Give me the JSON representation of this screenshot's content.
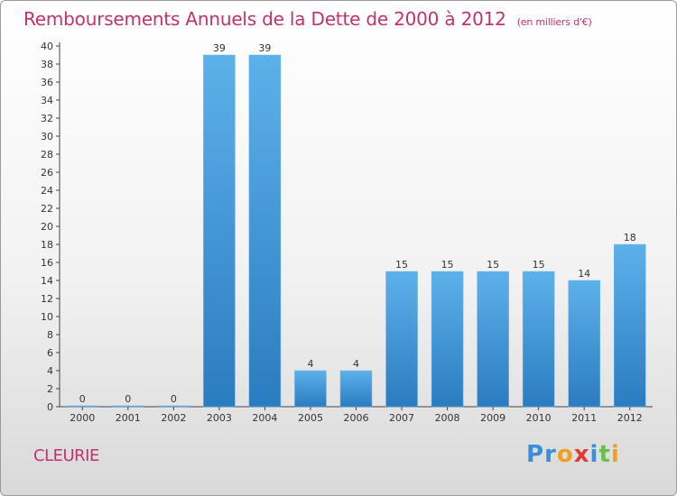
{
  "title": "Remboursements Annuels de la Dette de 2000 à 2012",
  "unit_note": "(en milliers d'€)",
  "place_name": "CLEURIE",
  "logo": {
    "letters": [
      {
        "ch": "P",
        "color": "#3a8fd8"
      },
      {
        "ch": "r",
        "color": "#3a8fd8"
      },
      {
        "ch": "o",
        "color": "#f0a020"
      },
      {
        "ch": "x",
        "color": "#e03a3a"
      },
      {
        "ch": "i",
        "color": "#3a8fd8"
      },
      {
        "ch": "t",
        "color": "#6cc04a"
      },
      {
        "ch": "i",
        "color": "#f0a020"
      }
    ]
  },
  "colors": {
    "bar_light": "#5db1ea",
    "bar_dark": "#2a7cc0",
    "accent": "#c0336b"
  },
  "chart_data": {
    "type": "bar",
    "categories": [
      "2000",
      "2001",
      "2002",
      "2003",
      "2004",
      "2005",
      "2006",
      "2007",
      "2008",
      "2009",
      "2010",
      "2011",
      "2012"
    ],
    "values": [
      0,
      0,
      0,
      39,
      39,
      4,
      4,
      15,
      15,
      15,
      15,
      14,
      18
    ],
    "data_labels": [
      "0",
      "0",
      "0",
      "39",
      "39",
      "4",
      "4",
      "15",
      "15",
      "15",
      "15",
      "14",
      "18"
    ],
    "ylim": [
      0,
      40
    ],
    "y_ticks": [
      "0",
      "2",
      "4",
      "6",
      "8",
      "10",
      "12",
      "14",
      "16",
      "18",
      "20",
      "22",
      "24",
      "26",
      "28",
      "30",
      "32",
      "34",
      "36",
      "38",
      "40"
    ],
    "grid": false,
    "xlabel": "",
    "ylabel": ""
  }
}
